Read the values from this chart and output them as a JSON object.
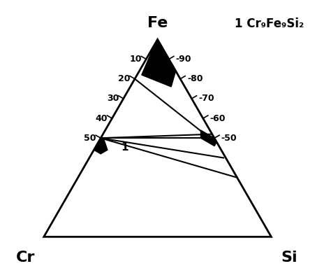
{
  "title": "1 Cr₉Fe₉Si₂",
  "left_tick_labels": [
    10,
    20,
    30,
    40,
    50
  ],
  "right_tick_labels": [
    90,
    80,
    70,
    60,
    50
  ],
  "background_color": "#ffffff",
  "line_color": "#000000"
}
